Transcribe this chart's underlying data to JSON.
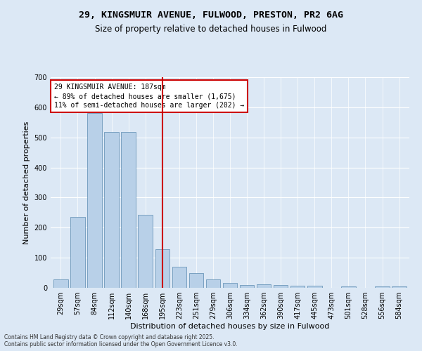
{
  "title1": "29, KINGSMUIR AVENUE, FULWOOD, PRESTON, PR2 6AG",
  "title2": "Size of property relative to detached houses in Fulwood",
  "xlabel": "Distribution of detached houses by size in Fulwood",
  "ylabel": "Number of detached properties",
  "categories": [
    "29sqm",
    "57sqm",
    "84sqm",
    "112sqm",
    "140sqm",
    "168sqm",
    "195sqm",
    "223sqm",
    "251sqm",
    "279sqm",
    "306sqm",
    "334sqm",
    "362sqm",
    "390sqm",
    "417sqm",
    "445sqm",
    "473sqm",
    "501sqm",
    "528sqm",
    "556sqm",
    "584sqm"
  ],
  "values": [
    28,
    235,
    580,
    518,
    518,
    243,
    128,
    70,
    48,
    28,
    16,
    10,
    11,
    10,
    6,
    6,
    0,
    5,
    0,
    5,
    5
  ],
  "bar_color": "#b8d0e8",
  "bar_edge_color": "#5a8ab0",
  "vline_x": 6,
  "vline_color": "#cc0000",
  "annotation_text": "29 KINGSMUIR AVENUE: 187sqm\n← 89% of detached houses are smaller (1,675)\n11% of semi-detached houses are larger (202) →",
  "annotation_box_color": "#ffffff",
  "annotation_box_edge": "#cc0000",
  "ylim": [
    0,
    700
  ],
  "yticks": [
    0,
    100,
    200,
    300,
    400,
    500,
    600,
    700
  ],
  "bg_color": "#dce8f5",
  "plot_bg_color": "#dce8f5",
  "footer1": "Contains HM Land Registry data © Crown copyright and database right 2025.",
  "footer2": "Contains public sector information licensed under the Open Government Licence v3.0.",
  "title_fontsize": 9.5,
  "subtitle_fontsize": 8.5,
  "tick_fontsize": 7,
  "label_fontsize": 8,
  "annot_fontsize": 7
}
